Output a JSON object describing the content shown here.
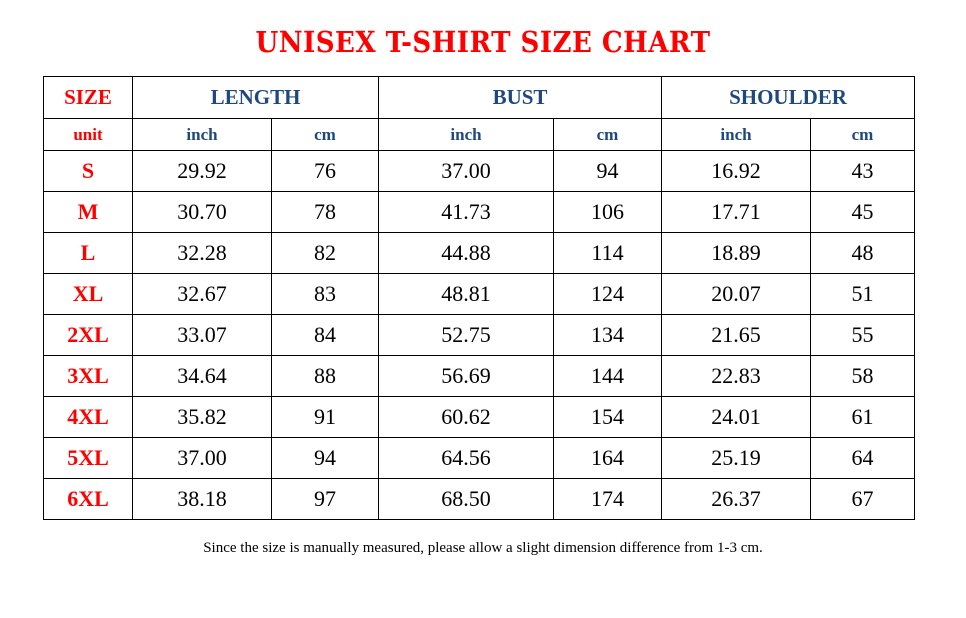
{
  "title": "UNISEX T-SHIRT SIZE CHART",
  "header": {
    "size": "SIZE",
    "length": "LENGTH",
    "bust": "BUST",
    "shoulder": "SHOULDER"
  },
  "units": {
    "label": "unit",
    "inch": "inch",
    "cm": "cm"
  },
  "colors": {
    "title": "#ff0000",
    "header": "#1f497d",
    "size_labels": "#ff0000"
  },
  "rows": [
    {
      "size": "S",
      "length_in": "29.92",
      "length_cm": "76",
      "bust_in": "37.00",
      "bust_cm": "94",
      "shoulder_in": "16.92",
      "shoulder_cm": "43"
    },
    {
      "size": "M",
      "length_in": "30.70",
      "length_cm": "78",
      "bust_in": "41.73",
      "bust_cm": "106",
      "shoulder_in": "17.71",
      "shoulder_cm": "45"
    },
    {
      "size": "L",
      "length_in": "32.28",
      "length_cm": "82",
      "bust_in": "44.88",
      "bust_cm": "114",
      "shoulder_in": "18.89",
      "shoulder_cm": "48"
    },
    {
      "size": "XL",
      "length_in": "32.67",
      "length_cm": "83",
      "bust_in": "48.81",
      "bust_cm": "124",
      "shoulder_in": "20.07",
      "shoulder_cm": "51"
    },
    {
      "size": "2XL",
      "length_in": "33.07",
      "length_cm": "84",
      "bust_in": "52.75",
      "bust_cm": "134",
      "shoulder_in": "21.65",
      "shoulder_cm": "55"
    },
    {
      "size": "3XL",
      "length_in": "34.64",
      "length_cm": "88",
      "bust_in": "56.69",
      "bust_cm": "144",
      "shoulder_in": "22.83",
      "shoulder_cm": "58"
    },
    {
      "size": "4XL",
      "length_in": "35.82",
      "length_cm": "91",
      "bust_in": "60.62",
      "bust_cm": "154",
      "shoulder_in": "24.01",
      "shoulder_cm": "61"
    },
    {
      "size": "5XL",
      "length_in": "37.00",
      "length_cm": "94",
      "bust_in": "64.56",
      "bust_cm": "164",
      "shoulder_in": "25.19",
      "shoulder_cm": "64"
    },
    {
      "size": "6XL",
      "length_in": "38.18",
      "length_cm": "97",
      "bust_in": "68.50",
      "bust_cm": "174",
      "shoulder_in": "26.37",
      "shoulder_cm": "67"
    }
  ],
  "note": "Since the size is manually measured, please allow a slight dimension difference from 1-3 cm."
}
